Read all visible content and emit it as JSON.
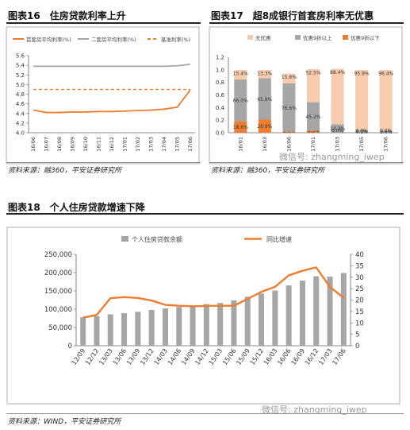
{
  "left_panel": {
    "heading": "图表16　住房贷款利率上升",
    "source": "资料来源：融360，平安证券研究所"
  },
  "right_panel": {
    "heading": "图表17　超8成银行首套房利率无优惠",
    "source": "资料来源：融360，平安证券研究所",
    "watermark": "微信号: zhangming_iwep"
  },
  "bottom_panel": {
    "heading": "图表18　个人住房贷款增速下降",
    "source": "资料来源：WIND，平安证券研究所",
    "watermark": "微信号: zhangming_iwep"
  },
  "colors": {
    "orange": "#ED7D31",
    "gray": "#A6A6A6",
    "peach": "#F8CBAD"
  },
  "chart_data": [
    {
      "type": "line",
      "x": [
        "16/06",
        "16/07",
        "16/08",
        "16/09",
        "16/10",
        "16/11",
        "16/12",
        "17/01",
        "17/02",
        "17/03",
        "17/04",
        "17/05",
        "17/06"
      ],
      "series": [
        {
          "name": "首套房平均利率(%)",
          "values": [
            4.47,
            4.42,
            4.42,
            4.43,
            4.43,
            4.44,
            4.44,
            4.45,
            4.46,
            4.47,
            4.49,
            4.53,
            4.89
          ]
        },
        {
          "name": "二套房平均利率(%)",
          "values": [
            5.38,
            5.38,
            5.38,
            5.38,
            5.38,
            5.38,
            5.38,
            5.38,
            5.38,
            5.38,
            5.38,
            5.39,
            5.42
          ]
        },
        {
          "name": "基准利率(%)",
          "values": [
            4.9,
            4.9,
            4.9,
            4.9,
            4.9,
            4.9,
            4.9,
            4.9,
            4.9,
            4.9,
            4.9,
            4.9,
            4.9
          ]
        }
      ],
      "ylim": [
        4.0,
        5.6
      ],
      "yticks": [
        "4.0",
        "4.2",
        "4.4",
        "4.6",
        "4.8",
        "5.0",
        "5.2",
        "5.4",
        "5.6"
      ]
    },
    {
      "type": "bar",
      "stacked": true,
      "categories": [
        "16/01",
        "16/03",
        "16/06",
        "17/01",
        "17/03",
        "17/05",
        "17/06"
      ],
      "series": [
        {
          "name": "优惠9折以下",
          "values": [
            0.186,
            0.209,
            0.018,
            0.033,
            0.0,
            0.0,
            0.0
          ],
          "labels": [
            "18.6%",
            "20.9%",
            "1.8%",
            "3.3%",
            "",
            "",
            ""
          ]
        },
        {
          "name": "优惠9折以上",
          "values": [
            0.66,
            0.658,
            0.766,
            0.452,
            0.133,
            0.041,
            0.036
          ],
          "labels": [
            "66.0%",
            "65.8%",
            "76.6%",
            "45.2%",
            "13.3%",
            "4.1%",
            "3.6%"
          ]
        },
        {
          "name": "无优惠",
          "values": [
            0.154,
            0.133,
            0.156,
            0.525,
            0.884,
            0.959,
            0.964
          ],
          "labels": [
            "15.4%",
            "13.3%",
            "15.6%",
            "52.5%",
            "88.4%",
            "95.9%",
            "96.4%"
          ]
        }
      ],
      "extra_labels": [
        "",
        "",
        "",
        "",
        "0.0%",
        "0.0%",
        "0.0%"
      ],
      "ylim": [
        0,
        1.2
      ],
      "yticks": [
        "0.0",
        "0.2",
        "0.4",
        "0.6",
        "0.8",
        "1.0",
        "1.2"
      ]
    },
    {
      "type": "bar",
      "categories": [
        "12/09",
        "12/12",
        "13/03",
        "13/06",
        "13/09",
        "13/12",
        "14/03",
        "14/06",
        "14/09",
        "14/12",
        "15/03",
        "15/06",
        "15/09",
        "15/12",
        "16/03",
        "16/06",
        "16/09",
        "16/12",
        "17/03",
        "17/06"
      ],
      "series": [
        {
          "name": "个人住房贷款余额",
          "type": "bar",
          "axis": "left",
          "values": [
            78000,
            81000,
            86000,
            89000,
            93000,
            98000,
            102000,
            106000,
            110000,
            114000,
            117000,
            124000,
            134000,
            143000,
            151000,
            165000,
            178000,
            190000,
            189000,
            199000
          ]
        },
        {
          "name": "同比增速",
          "type": "line",
          "axis": "right",
          "values": [
            12.3,
            13.5,
            20.8,
            21.3,
            20.9,
            19.8,
            17.9,
            17.5,
            17.3,
            17.4,
            17.5,
            17.5,
            20.5,
            23.6,
            25.8,
            30.8,
            32.8,
            34.3,
            25.7,
            21.0
          ]
        }
      ],
      "ylim": [
        0,
        250000
      ],
      "yticks": [
        "0",
        "50,000",
        "100,000",
        "150,000",
        "200,000",
        "250,000"
      ],
      "y2lim": [
        0,
        40
      ],
      "y2ticks": [
        "0",
        "5",
        "10",
        "15",
        "20",
        "25",
        "30",
        "35",
        "40"
      ]
    }
  ]
}
